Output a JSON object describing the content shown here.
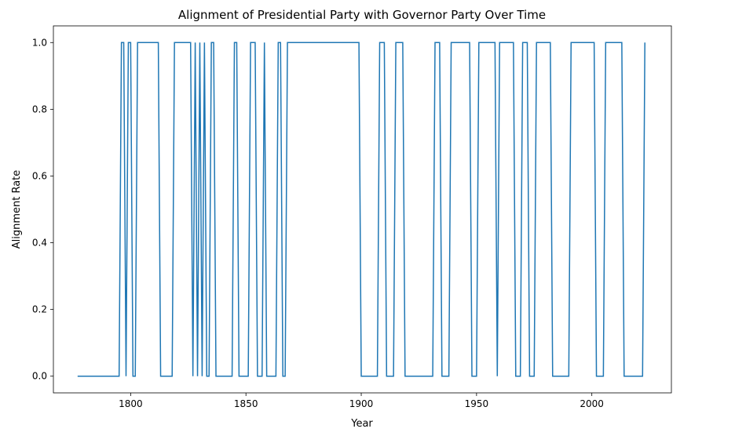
{
  "chart_data": {
    "type": "line",
    "title": "Alignment of Presidential Party with Governor Party Over Time",
    "xlabel": "Year",
    "ylabel": "Alignment Rate",
    "xlim": [
      1766.5,
      2034.5
    ],
    "ylim": [
      -0.05,
      1.05
    ],
    "xticks": [
      1800,
      1850,
      1900,
      1950,
      2000
    ],
    "yticks": [
      0.0,
      0.2,
      0.4,
      0.6,
      0.8,
      1.0
    ],
    "ytick_labels": [
      "0.0",
      "0.2",
      "0.4",
      "0.6",
      "0.8",
      "1.0"
    ],
    "grid": false,
    "series": [
      {
        "color": "#1f77b4",
        "x": [
          1777,
          1795,
          1796,
          1797,
          1798,
          1799,
          1800,
          1801,
          1802,
          1803,
          1804,
          1812,
          1813,
          1818,
          1819,
          1826,
          1827,
          1828,
          1829,
          1830,
          1831,
          1832,
          1833,
          1834,
          1835,
          1836,
          1837,
          1838,
          1839,
          1844,
          1845,
          1846,
          1847,
          1851,
          1852,
          1854,
          1855,
          1857,
          1858,
          1859,
          1860,
          1863,
          1864,
          1865,
          1866,
          1867,
          1868,
          1899,
          1900,
          1907,
          1908,
          1910,
          1911,
          1914,
          1915,
          1918,
          1919,
          1931,
          1932,
          1934,
          1935,
          1938,
          1939,
          1947,
          1948,
          1950,
          1951,
          1958,
          1959,
          1960,
          1961,
          1966,
          1967,
          1969,
          1970,
          1972,
          1973,
          1975,
          1976,
          1982,
          1983,
          1990,
          1991,
          2001,
          2002,
          2005,
          2006,
          2013,
          2014,
          2022,
          2023
        ],
        "y": [
          0,
          0,
          1,
          1,
          0,
          1,
          1,
          0,
          0,
          1,
          1,
          1,
          0,
          0,
          1,
          1,
          0,
          1,
          0,
          1,
          0,
          1,
          0,
          0,
          1,
          1,
          0,
          0,
          0,
          0,
          1,
          1,
          0,
          0,
          1,
          1,
          0,
          0,
          1,
          0,
          0,
          0,
          1,
          1,
          0,
          0,
          1,
          1,
          0,
          0,
          1,
          1,
          0,
          0,
          1,
          1,
          0,
          0,
          1,
          1,
          0,
          0,
          1,
          1,
          0,
          0,
          1,
          1,
          0,
          1,
          1,
          1,
          0,
          0,
          1,
          1,
          0,
          0,
          1,
          1,
          0,
          0,
          1,
          1,
          0,
          0,
          1,
          1,
          0,
          0,
          1
        ]
      }
    ]
  }
}
